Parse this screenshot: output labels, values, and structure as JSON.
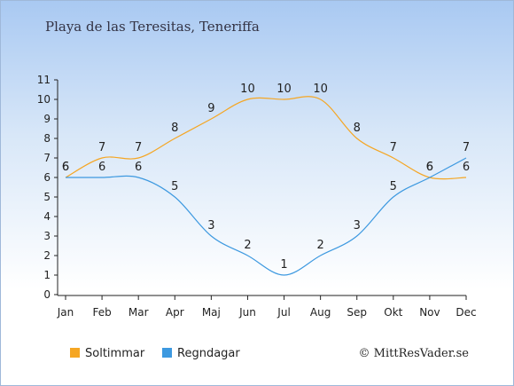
{
  "title": "Playa de las Teresitas, Teneriffa",
  "credit": "© MittResVader.se",
  "chart_data": {
    "type": "line",
    "categories": [
      "Jan",
      "Feb",
      "Mar",
      "Apr",
      "Maj",
      "Jun",
      "Jul",
      "Aug",
      "Sep",
      "Okt",
      "Nov",
      "Dec"
    ],
    "ylim": [
      0,
      11
    ],
    "yticks": [
      0,
      1,
      2,
      3,
      4,
      5,
      6,
      7,
      8,
      9,
      10,
      11
    ],
    "grid": false,
    "legend_position": "bottom-left",
    "series": [
      {
        "name": "Soltimmar",
        "color": "#f5a623",
        "values": [
          6,
          7,
          7,
          8,
          9,
          10,
          10,
          10,
          8,
          7,
          6,
          6
        ]
      },
      {
        "name": "Regndagar",
        "color": "#3d99e0",
        "values": [
          6,
          6,
          6,
          5,
          3,
          2,
          1,
          2,
          3,
          5,
          6,
          7
        ]
      }
    ]
  }
}
